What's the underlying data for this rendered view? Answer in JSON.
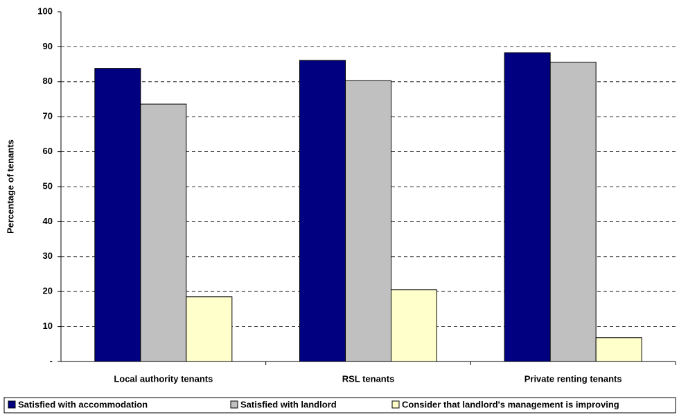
{
  "chart_data": {
    "type": "bar",
    "y_label": "Percentage of tenants",
    "categories": [
      "Local authority tenants",
      "RSL tenants",
      "Private renting tenants"
    ],
    "series": [
      {
        "name": "Satisfied with accommodation",
        "color": "#000080",
        "values": [
          83.8,
          86.1,
          88.3
        ]
      },
      {
        "name": "Satisfied with landlord",
        "color": "#c0c0c0",
        "values": [
          73.6,
          80.3,
          85.6
        ]
      },
      {
        "name": "Consider that landlord's management is improving",
        "color": "#ffffcc",
        "values": [
          18.5,
          20.5,
          6.8
        ]
      }
    ],
    "ylim": [
      0,
      100
    ],
    "yticks": [
      {
        "value": 0,
        "label": "-"
      },
      10,
      20,
      30,
      40,
      50,
      60,
      70,
      80,
      90,
      100
    ],
    "grid": true,
    "legend": "bottom"
  }
}
